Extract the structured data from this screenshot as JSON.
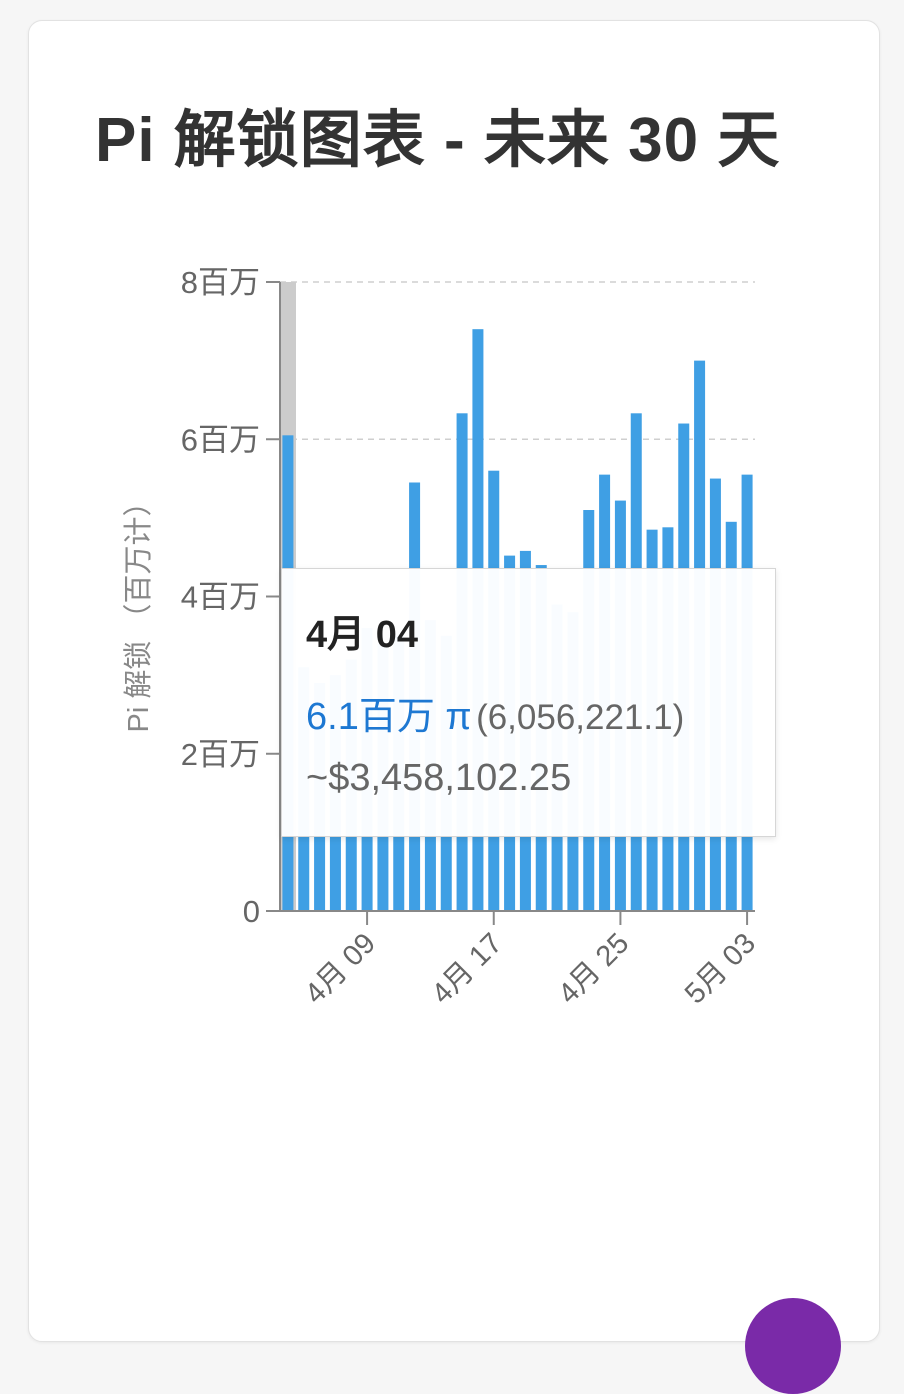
{
  "card": {
    "title": "Pi 解锁图表 - 未来 30 天"
  },
  "chart_data": {
    "type": "bar",
    "ylabel": "Pi 解锁 （百万计）",
    "y_tick_labels": [
      "0",
      "2百万",
      "4百万",
      "6百万",
      "8百万"
    ],
    "y_ticks": [
      0,
      2,
      4,
      6,
      8
    ],
    "ylim": [
      0,
      8
    ],
    "x_tick_labels": [
      "4月 09",
      "4月 17",
      "4月 25",
      "5月 03"
    ],
    "x_tick_index": [
      5,
      13,
      21,
      29
    ],
    "gridlines": [
      6,
      8
    ],
    "bar_color": "#3f9fe4",
    "highlight_index": 0,
    "highlight_color": "#cccccc",
    "categories": [
      "04-04",
      "04-05",
      "04-06",
      "04-07",
      "04-08",
      "04-09",
      "04-10",
      "04-11",
      "04-12",
      "04-13",
      "04-14",
      "04-15",
      "04-16",
      "04-17",
      "04-18",
      "04-19",
      "04-20",
      "04-21",
      "04-22",
      "04-23",
      "04-24",
      "04-25",
      "04-26",
      "04-27",
      "04-28",
      "04-29",
      "04-30",
      "05-01",
      "05-02",
      "05-03"
    ],
    "values": [
      6.05,
      3.1,
      2.9,
      3.0,
      3.2,
      3.6,
      3.4,
      3.5,
      5.45,
      3.7,
      3.5,
      6.33,
      7.4,
      5.6,
      4.52,
      4.58,
      4.4,
      3.9,
      3.8,
      5.1,
      5.55,
      5.22,
      6.33,
      4.85,
      4.88,
      6.2,
      7.0,
      5.5,
      4.95,
      5.55
    ]
  },
  "tooltip": {
    "date": "4月 04",
    "amount": "6.1百万 π",
    "exact": "(6,056,221.1)",
    "usd": "~$3,458,102.25"
  }
}
